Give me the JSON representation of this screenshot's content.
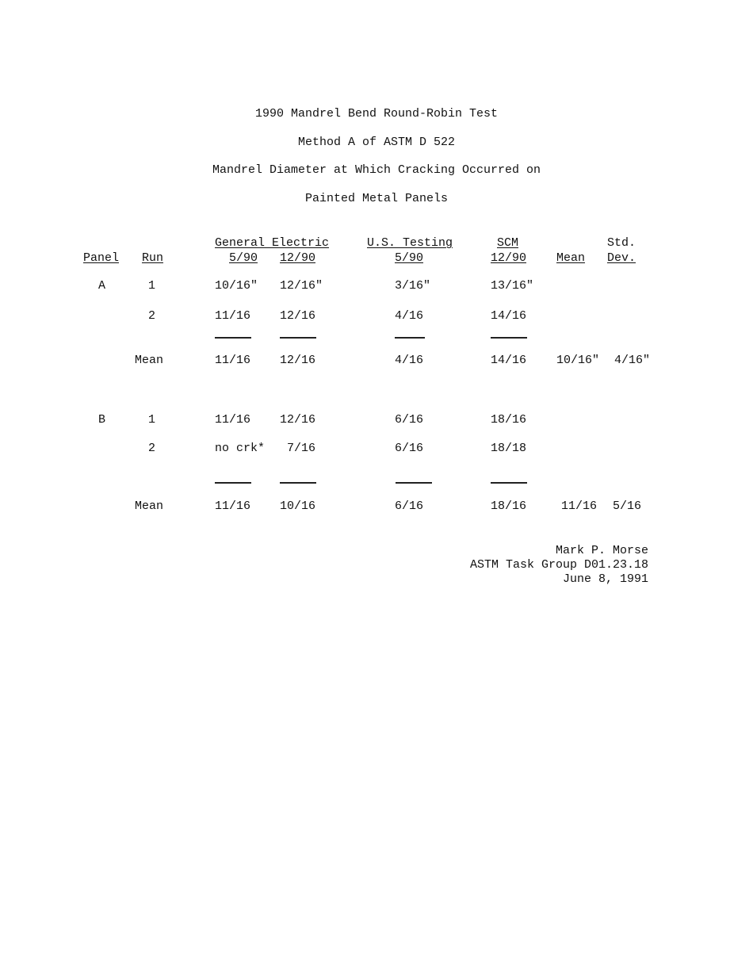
{
  "title": {
    "line1": "1990 Mandrel Bend Round-Robin Test",
    "line2": "Method A of ASTM D 522",
    "line3": "Mandrel Diameter at Which Cracking Occurred on",
    "line4": "Painted Metal Panels"
  },
  "table": {
    "headers": {
      "panel": "Panel",
      "run": "Run",
      "ge": "General Electric",
      "ge_590": "5/90",
      "ge_1290": "12/90",
      "ust": "U.S. Testing",
      "ust_590": "5/90",
      "scm": "SCM",
      "scm_1290": "12/90",
      "mean": "Mean",
      "std1": "Std.",
      "std2": "Dev."
    },
    "panels": [
      {
        "panel": "A",
        "rows": [
          {
            "run": "1",
            "ge_590": "10/16\"",
            "ge_1290": "12/16\"",
            "ust_590": "3/16\"",
            "scm_1290": "13/16\""
          },
          {
            "run": "2",
            "ge_590": "11/16",
            "ge_1290": "12/16",
            "ust_590": "4/16",
            "scm_1290": "14/16"
          }
        ],
        "mean_row": {
          "run": "Mean",
          "ge_590": "11/16",
          "ge_1290": "12/16",
          "ust_590": "4/16",
          "scm_1290": "14/16",
          "mean": "10/16\"",
          "std": "4/16\""
        }
      },
      {
        "panel": "B",
        "rows": [
          {
            "run": "1",
            "ge_590": "11/16",
            "ge_1290": "12/16",
            "ust_590": "6/16",
            "scm_1290": "18/16"
          },
          {
            "run": "2",
            "ge_590": "no crk*",
            "ge_1290": "7/16",
            "ust_590": "6/16",
            "scm_1290": "18/18"
          }
        ],
        "mean_row": {
          "run": "Mean",
          "ge_590": "11/16",
          "ge_1290": "10/16",
          "ust_590": "6/16",
          "scm_1290": "18/16",
          "mean": "11/16",
          "std": "5/16"
        }
      }
    ]
  },
  "signature": {
    "name": "Mark P. Morse",
    "group": "ASTM Task Group D01.23.18",
    "date": "June 8, 1991"
  }
}
